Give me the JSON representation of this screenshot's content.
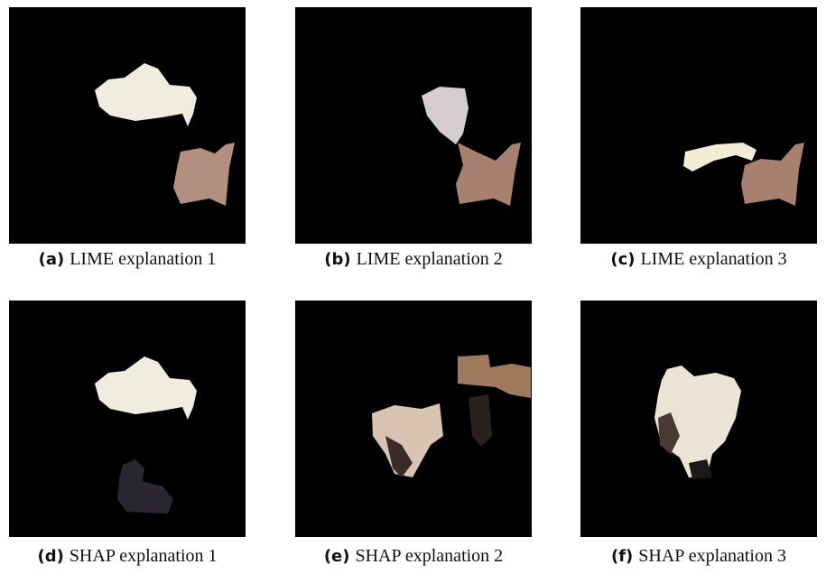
{
  "panels": [
    {
      "label": "(a)",
      "caption": "LIME explanation 1"
    },
    {
      "label": "(b)",
      "caption": "LIME explanation 2"
    },
    {
      "label": "(c)",
      "caption": "LIME explanation 3"
    },
    {
      "label": "(d)",
      "caption": "SHAP explanation 1"
    },
    {
      "label": "(e)",
      "caption": "SHAP explanation 2"
    },
    {
      "label": "(f)",
      "caption": "SHAP explanation 3"
    }
  ]
}
